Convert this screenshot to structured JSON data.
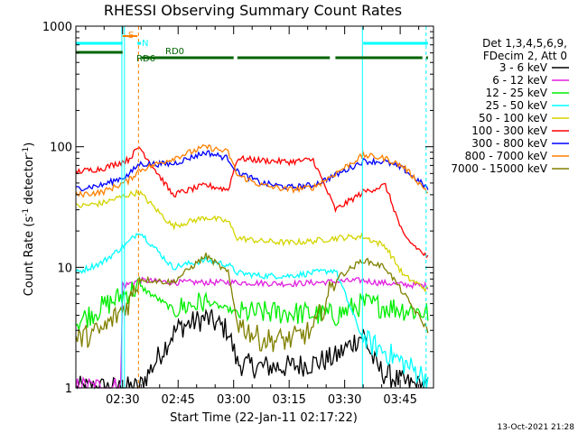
{
  "chart_data": {
    "type": "line",
    "title": "RHESSI Observing Summary Count Rates",
    "xlabel": "Start Time (22-Jan-11 02:17:22)",
    "ylabel": "Count Rate (s",
    "ylabel_sup": "-1",
    "ylabel_tail": " detector",
    "ylabel_close": ")",
    "y_scale": "log",
    "ylim": [
      1,
      1000
    ],
    "y_ticks": [
      "1",
      "10",
      "100",
      "1000"
    ],
    "xlim_minutes": [
      17.37,
      114.0
    ],
    "x_ticks": [
      "02:30",
      "02:45",
      "03:00",
      "03:15",
      "03:30",
      "03:45"
    ],
    "x_tick_minutes": [
      30,
      45,
      60,
      75,
      90,
      105
    ],
    "legend_header": [
      "Det 1,3,4,5,6,9,",
      "FDecim 2, Att 0"
    ],
    "legend_placement": "right",
    "series": [
      {
        "name": "3 - 6 keV",
        "color": "#000000",
        "x": [
          17.4,
          29.5,
          34.5,
          43.5,
          45.5,
          52.5,
          58.5,
          61.0,
          66.0,
          75.0,
          81.5,
          87.5,
          95.0,
          98.5,
          101.0,
          106.0,
          112.5
        ],
        "y": [
          1.0,
          1.0,
          1.0,
          2.8,
          3.2,
          3.8,
          3.0,
          1.6,
          1.5,
          1.5,
          1.6,
          1.8,
          2.8,
          1.5,
          1.3,
          1.1,
          1.0
        ]
      },
      {
        "name": "6 - 12 keV",
        "color": "#e020e0",
        "x": [
          17.4,
          29.5,
          30.0,
          34.5,
          43.5,
          60.0,
          75.0,
          95.0,
          98.5,
          106.0,
          112.5
        ],
        "y": [
          1.0,
          1.0,
          7.0,
          7.8,
          7.5,
          7.5,
          7.3,
          7.8,
          7.5,
          7.2,
          7.0
        ]
      },
      {
        "name": "12 - 25 keV",
        "color": "#00ee00",
        "x": [
          17.4,
          34.5,
          43.5,
          52.5,
          61.0,
          75.0,
          87.5,
          95.0,
          106.0,
          112.5
        ],
        "y": [
          3.5,
          7.0,
          4.5,
          5.2,
          4.2,
          4.2,
          4.0,
          5.0,
          4.5,
          4.2
        ]
      },
      {
        "name": "25 - 50 keV",
        "color": "#00ffff",
        "x": [
          17.4,
          24.5,
          31.5,
          34.5,
          43.5,
          52.5,
          58.5,
          61.0,
          67.5,
          75.0,
          81.5,
          87.5,
          95.0,
          101.0,
          106.0,
          112.5
        ],
        "y": [
          9.0,
          11.0,
          16.0,
          20.0,
          10.0,
          11.5,
          10.5,
          9.0,
          8.5,
          8.5,
          9.0,
          9.5,
          2.5,
          2.0,
          1.6,
          1.2
        ]
      },
      {
        "name": "50 - 100 keV",
        "color": "#d4d400",
        "x": [
          17.4,
          24.5,
          31.5,
          34.5,
          43.5,
          52.5,
          58.5,
          61.0,
          67.5,
          75.0,
          81.5,
          87.5,
          95.0,
          101.0,
          106.0,
          112.5
        ],
        "y": [
          32.0,
          34.0,
          40.0,
          42.0,
          22.0,
          26.0,
          24.0,
          17.5,
          16.5,
          16.0,
          16.5,
          17.5,
          18.0,
          15.0,
          8.5,
          6.5
        ]
      },
      {
        "name": "100 - 300 keV",
        "color": "#ff0000",
        "x": [
          17.4,
          24.5,
          31.5,
          34.5,
          43.5,
          52.5,
          58.5,
          61.0,
          67.5,
          75.0,
          81.5,
          87.5,
          95.0,
          101.0,
          106.0,
          112.5
        ],
        "y": [
          62.0,
          66.0,
          78.0,
          100.0,
          40.0,
          48.0,
          44.0,
          80.0,
          77.0,
          75.0,
          78.0,
          30.0,
          42.0,
          48.0,
          18.0,
          12.0
        ]
      },
      {
        "name": "300 - 800 keV",
        "color": "#0000ff",
        "x": [
          17.4,
          24.5,
          31.5,
          34.5,
          43.5,
          52.5,
          58.5,
          61.0,
          67.5,
          75.0,
          81.5,
          87.5,
          95.0,
          101.0,
          106.0,
          112.5
        ],
        "y": [
          45.0,
          48.0,
          58.0,
          72.0,
          72.0,
          90.0,
          80.0,
          62.0,
          50.0,
          46.0,
          48.0,
          58.0,
          76.0,
          75.0,
          65.0,
          45.0
        ]
      },
      {
        "name": "800 - 7000 keV",
        "color": "#ff8000",
        "x": [
          17.4,
          24.5,
          31.5,
          34.5,
          43.5,
          52.5,
          58.5,
          61.0,
          67.5,
          75.0,
          81.5,
          87.5,
          95.0,
          101.0,
          106.0,
          112.5
        ],
        "y": [
          40.0,
          42.0,
          52.0,
          64.0,
          80.0,
          100.0,
          90.0,
          58.0,
          48.0,
          44.0,
          46.0,
          60.0,
          85.0,
          80.0,
          68.0,
          42.0
        ]
      },
      {
        "name": "7000 - 15000 keV",
        "color": "#808000",
        "x": [
          17.4,
          24.5,
          31.5,
          34.5,
          43.5,
          52.5,
          58.5,
          61.0,
          67.5,
          75.0,
          81.5,
          87.5,
          95.0,
          101.0,
          106.0,
          112.5
        ],
        "y": [
          2.5,
          3.0,
          5.0,
          8.0,
          7.5,
          12.5,
          9.0,
          3.5,
          2.5,
          2.5,
          3.0,
          8.0,
          11.5,
          10.0,
          6.0,
          3.0
        ]
      }
    ],
    "flags": {
      "rows": [
        {
          "label": "S",
          "color": "#ff8000",
          "segments": [
            [
              30.0,
              34.0
            ]
          ]
        },
        {
          "label": "N",
          "color": "#00ffff",
          "segments": [
            [
              17.4,
              30.0
            ],
            [
              34.0,
              35.0
            ],
            [
              95.0,
              112.5
            ]
          ]
        },
        {
          "label": "RD6",
          "color": "#006400",
          "segments": [
            [
              17.4,
              30.0
            ]
          ]
        },
        {
          "label": "RD0",
          "color": "#006400",
          "segments": [
            [
              35.0,
              60.0
            ],
            [
              61.0,
              86.0
            ],
            [
              87.5,
              111.0
            ],
            [
              112.0,
              112.5
            ]
          ]
        }
      ]
    },
    "markers": [
      {
        "x": 29.8,
        "color": "#00ffff",
        "style": "solid"
      },
      {
        "x": 30.5,
        "color": "#00ffff",
        "style": "solid"
      },
      {
        "x": 34.3,
        "color": "#ff8000",
        "style": "dashed"
      },
      {
        "x": 94.8,
        "color": "#00ffff",
        "style": "solid"
      },
      {
        "x": 112.0,
        "color": "#00ffff",
        "style": "dashed"
      }
    ]
  },
  "footer_timestamp": "13-Oct-2021 21:28"
}
